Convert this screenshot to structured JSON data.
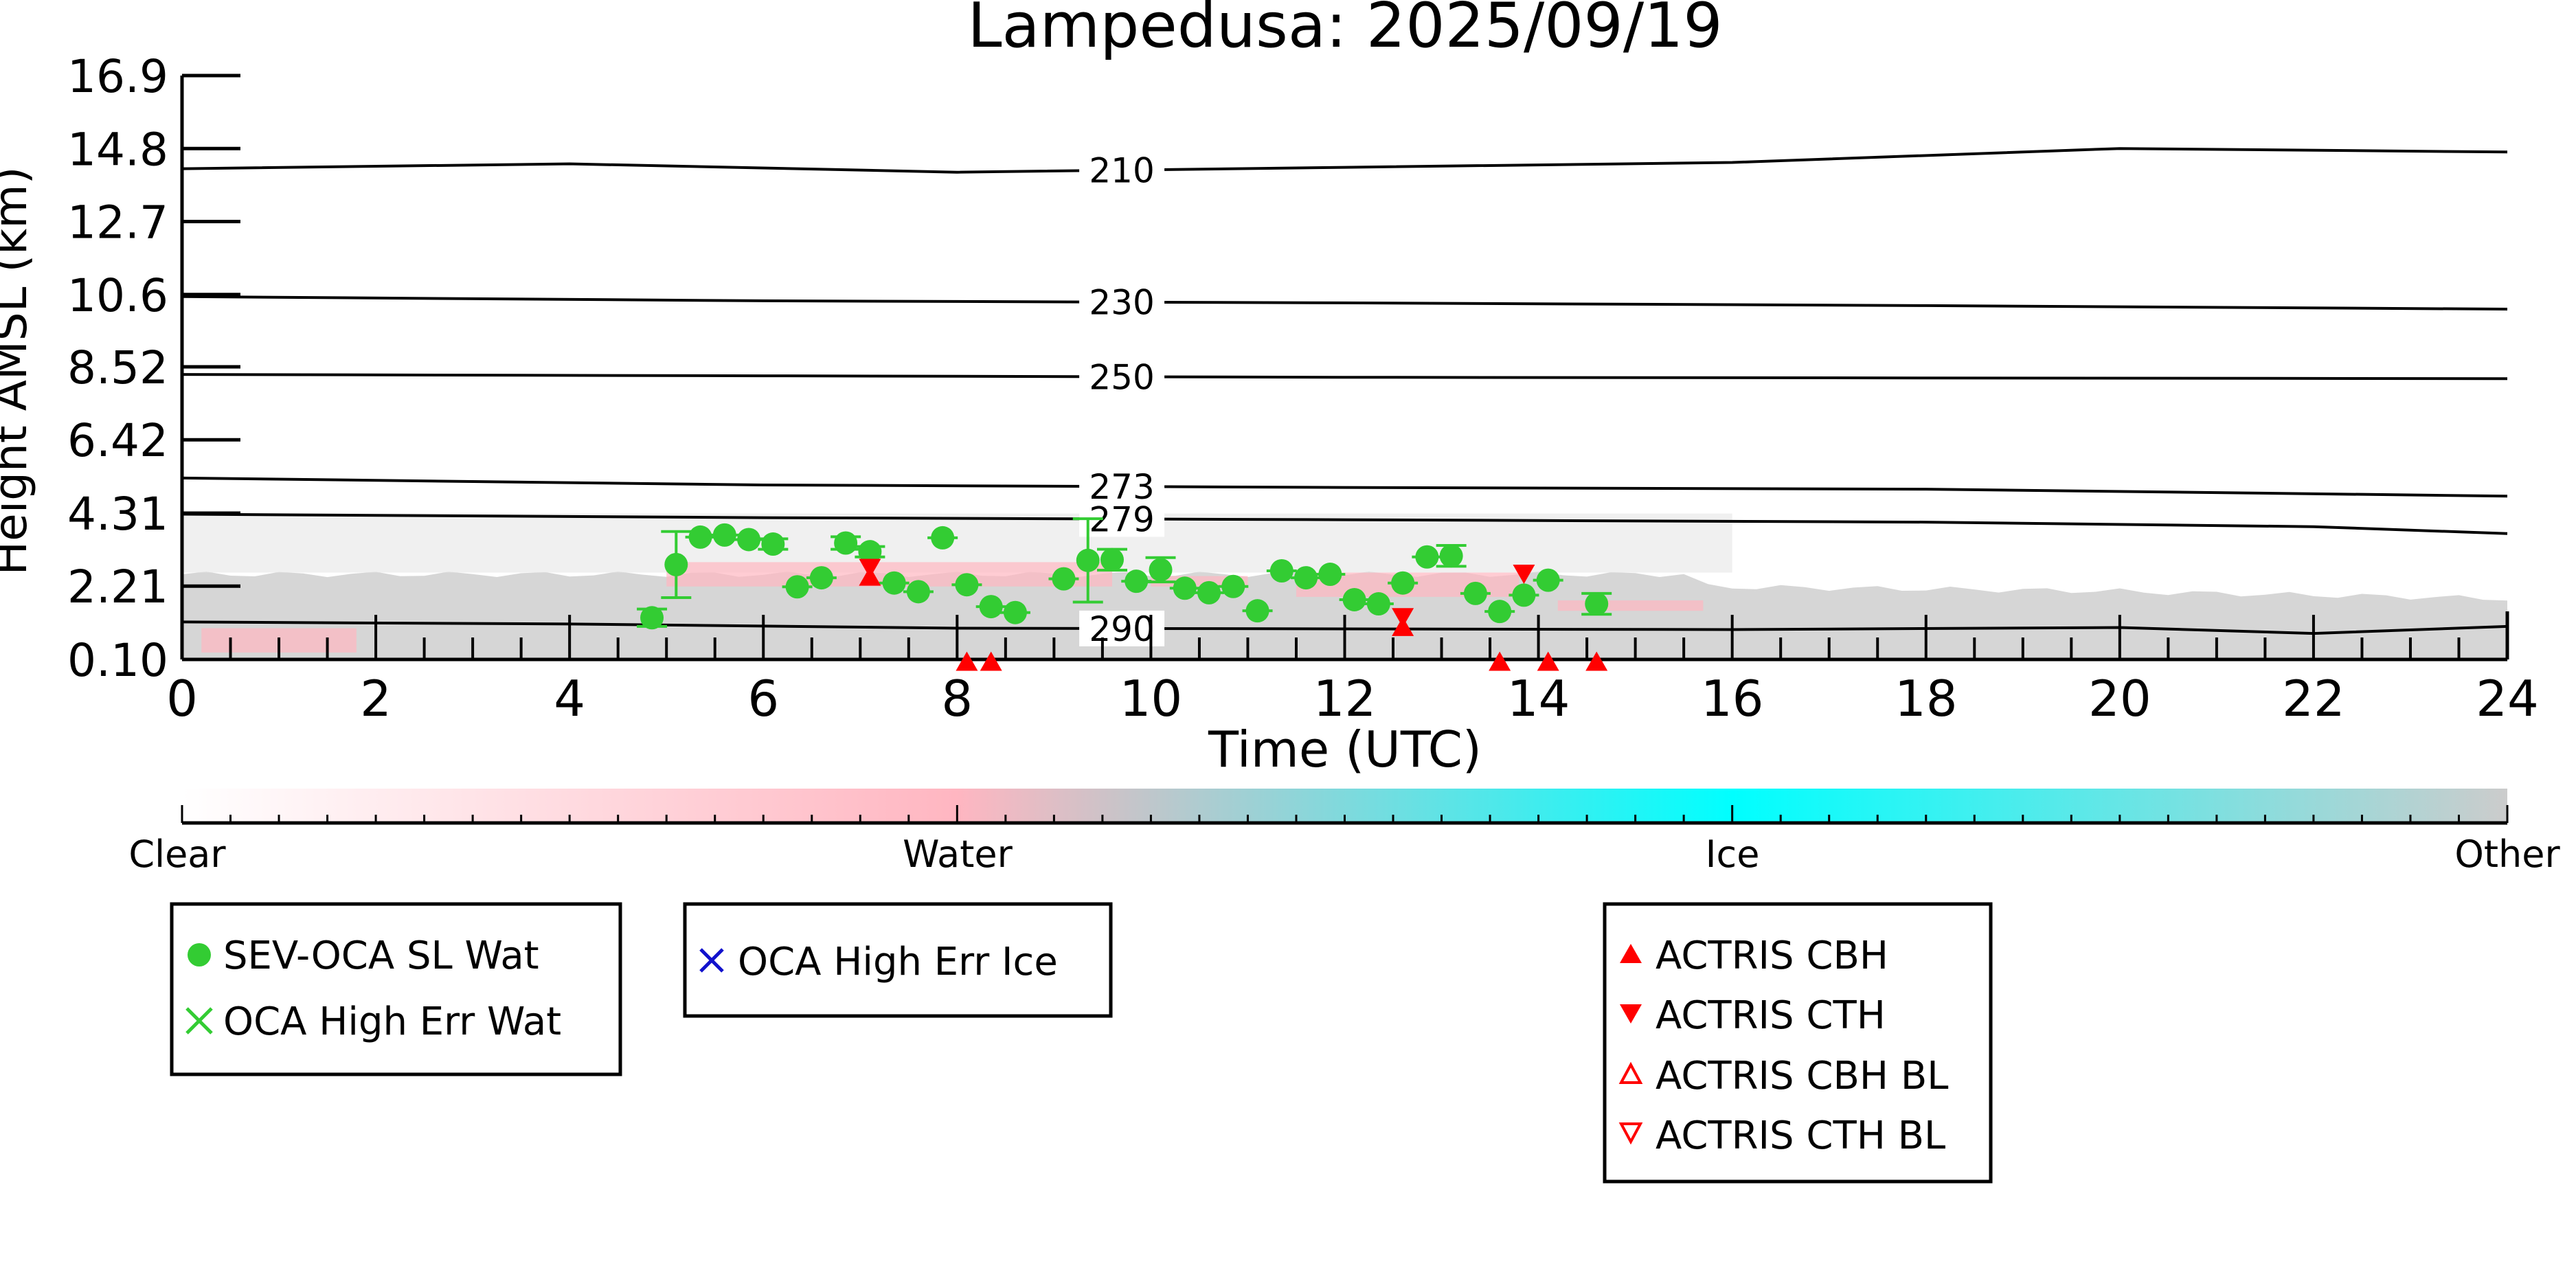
{
  "chart_data": {
    "type": "scatter",
    "title": "Lampedusa: 2025/09/19",
    "xlabel": "Time (UTC)",
    "ylabel": "Height AMSL (km)",
    "xlim": [
      0,
      24
    ],
    "ylim": [
      0.1,
      16.9
    ],
    "x_ticks": [
      0,
      2,
      4,
      6,
      8,
      10,
      12,
      14,
      16,
      18,
      20,
      22,
      24
    ],
    "x_tick_labels": [
      "0",
      "2",
      "4",
      "6",
      "8",
      "10",
      "12",
      "14",
      "16",
      "18",
      "20",
      "22",
      "24"
    ],
    "y_ticks": [
      0.1,
      2.21,
      4.31,
      6.42,
      8.52,
      10.6,
      12.7,
      14.8,
      16.9
    ],
    "y_tick_labels": [
      "0.10",
      "2.21",
      "4.31",
      "6.42",
      "8.52",
      "10.6",
      "12.7",
      "14.8",
      "16.9"
    ],
    "grid": false,
    "colors": {
      "sev_water": "#33cc33",
      "oca_ice": "#1111cc",
      "actris": "#ff0000",
      "cloud_other": "#cccccc",
      "cloud_water": "#ffb6c1",
      "contour": "#000000"
    },
    "series": [
      {
        "name": "SEV-OCA SL Wat",
        "marker": "circle",
        "points": [
          {
            "x": 4.85,
            "y": 1.3,
            "err": 0.25
          },
          {
            "x": 5.1,
            "y": 2.83,
            "err": 0.95
          },
          {
            "x": 5.35,
            "y": 3.62
          },
          {
            "x": 5.6,
            "y": 3.68
          },
          {
            "x": 5.85,
            "y": 3.55
          },
          {
            "x": 6.1,
            "y": 3.42,
            "err": 0.15
          },
          {
            "x": 6.35,
            "y": 2.19
          },
          {
            "x": 6.6,
            "y": 2.45
          },
          {
            "x": 6.85,
            "y": 3.45,
            "err": 0.18
          },
          {
            "x": 7.1,
            "y": 3.2,
            "err": 0.15
          },
          {
            "x": 7.35,
            "y": 2.3
          },
          {
            "x": 7.6,
            "y": 2.05
          },
          {
            "x": 7.85,
            "y": 3.6
          },
          {
            "x": 8.1,
            "y": 2.25
          },
          {
            "x": 8.35,
            "y": 1.62
          },
          {
            "x": 8.6,
            "y": 1.45
          },
          {
            "x": 9.1,
            "y": 2.42
          },
          {
            "x": 9.35,
            "y": 2.95,
            "err": 1.2
          },
          {
            "x": 9.6,
            "y": 2.97,
            "err": 0.3
          },
          {
            "x": 9.85,
            "y": 2.35
          },
          {
            "x": 10.1,
            "y": 2.68,
            "err": 0.35
          },
          {
            "x": 10.35,
            "y": 2.15
          },
          {
            "x": 10.6,
            "y": 2.02
          },
          {
            "x": 10.85,
            "y": 2.2
          },
          {
            "x": 11.1,
            "y": 1.5
          },
          {
            "x": 11.35,
            "y": 2.65
          },
          {
            "x": 11.6,
            "y": 2.45
          },
          {
            "x": 11.85,
            "y": 2.55
          },
          {
            "x": 12.1,
            "y": 1.82
          },
          {
            "x": 12.35,
            "y": 1.7
          },
          {
            "x": 12.6,
            "y": 2.3
          },
          {
            "x": 12.85,
            "y": 3.05
          },
          {
            "x": 13.1,
            "y": 3.08,
            "err": 0.3
          },
          {
            "x": 13.35,
            "y": 2.0
          },
          {
            "x": 13.6,
            "y": 1.48
          },
          {
            "x": 13.85,
            "y": 1.95
          },
          {
            "x": 14.1,
            "y": 2.38
          },
          {
            "x": 14.6,
            "y": 1.7,
            "err": 0.3
          }
        ]
      },
      {
        "name": "OCA High Err Wat",
        "marker": "x",
        "points": []
      },
      {
        "name": "OCA High Err Ice",
        "marker": "x",
        "points": []
      },
      {
        "name": "ACTRIS CBH",
        "marker": "triangle-up",
        "points": [
          {
            "x": 7.1,
            "y": 2.5
          },
          {
            "x": 8.1,
            "y": 0.05
          },
          {
            "x": 8.35,
            "y": 0.05
          },
          {
            "x": 12.6,
            "y": 1.05
          },
          {
            "x": 13.6,
            "y": 0.05
          },
          {
            "x": 14.1,
            "y": 0.05
          },
          {
            "x": 14.6,
            "y": 0.05
          }
        ]
      },
      {
        "name": "ACTRIS CTH",
        "marker": "triangle-down",
        "points": [
          {
            "x": 7.1,
            "y": 2.72
          },
          {
            "x": 12.6,
            "y": 1.3
          },
          {
            "x": 13.85,
            "y": 2.55
          }
        ]
      },
      {
        "name": "ACTRIS CBH BL",
        "marker": "triangle-up-open",
        "points": []
      },
      {
        "name": "ACTRIS CTH BL",
        "marker": "triangle-down-open",
        "points": []
      }
    ],
    "contours": [
      {
        "label": "210",
        "points": [
          [
            0,
            14.22
          ],
          [
            4,
            14.36
          ],
          [
            8,
            14.12
          ],
          [
            12,
            14.26
          ],
          [
            16,
            14.4
          ],
          [
            20,
            14.8
          ],
          [
            24,
            14.7
          ]
        ]
      },
      {
        "label": "230",
        "points": [
          [
            0,
            10.54
          ],
          [
            6,
            10.42
          ],
          [
            12,
            10.36
          ],
          [
            18,
            10.28
          ],
          [
            24,
            10.18
          ]
        ]
      },
      {
        "label": "250",
        "points": [
          [
            0,
            8.3
          ],
          [
            6,
            8.26
          ],
          [
            12,
            8.22
          ],
          [
            18,
            8.2
          ],
          [
            24,
            8.18
          ]
        ]
      },
      {
        "label": "273",
        "points": [
          [
            0,
            5.32
          ],
          [
            6,
            5.12
          ],
          [
            12,
            5.05
          ],
          [
            18,
            5.0
          ],
          [
            24,
            4.8
          ]
        ]
      },
      {
        "label": "279",
        "points": [
          [
            0,
            4.28
          ],
          [
            6,
            4.18
          ],
          [
            12,
            4.12
          ],
          [
            18,
            4.05
          ],
          [
            22,
            3.92
          ],
          [
            24,
            3.72
          ]
        ]
      },
      {
        "label": "290",
        "points": [
          [
            0,
            1.18
          ],
          [
            4,
            1.12
          ],
          [
            8,
            1.0
          ],
          [
            12,
            0.98
          ],
          [
            16,
            0.96
          ],
          [
            20,
            1.02
          ],
          [
            22,
            0.85
          ],
          [
            24,
            1.05
          ]
        ]
      }
    ],
    "colorbar": {
      "labels": [
        "Clear",
        "Water",
        "Ice",
        "Other"
      ],
      "colors": [
        "#ffffff",
        "#ffb6c1",
        "#00ffff",
        "#cccccc"
      ]
    },
    "legend_placement": "below"
  }
}
